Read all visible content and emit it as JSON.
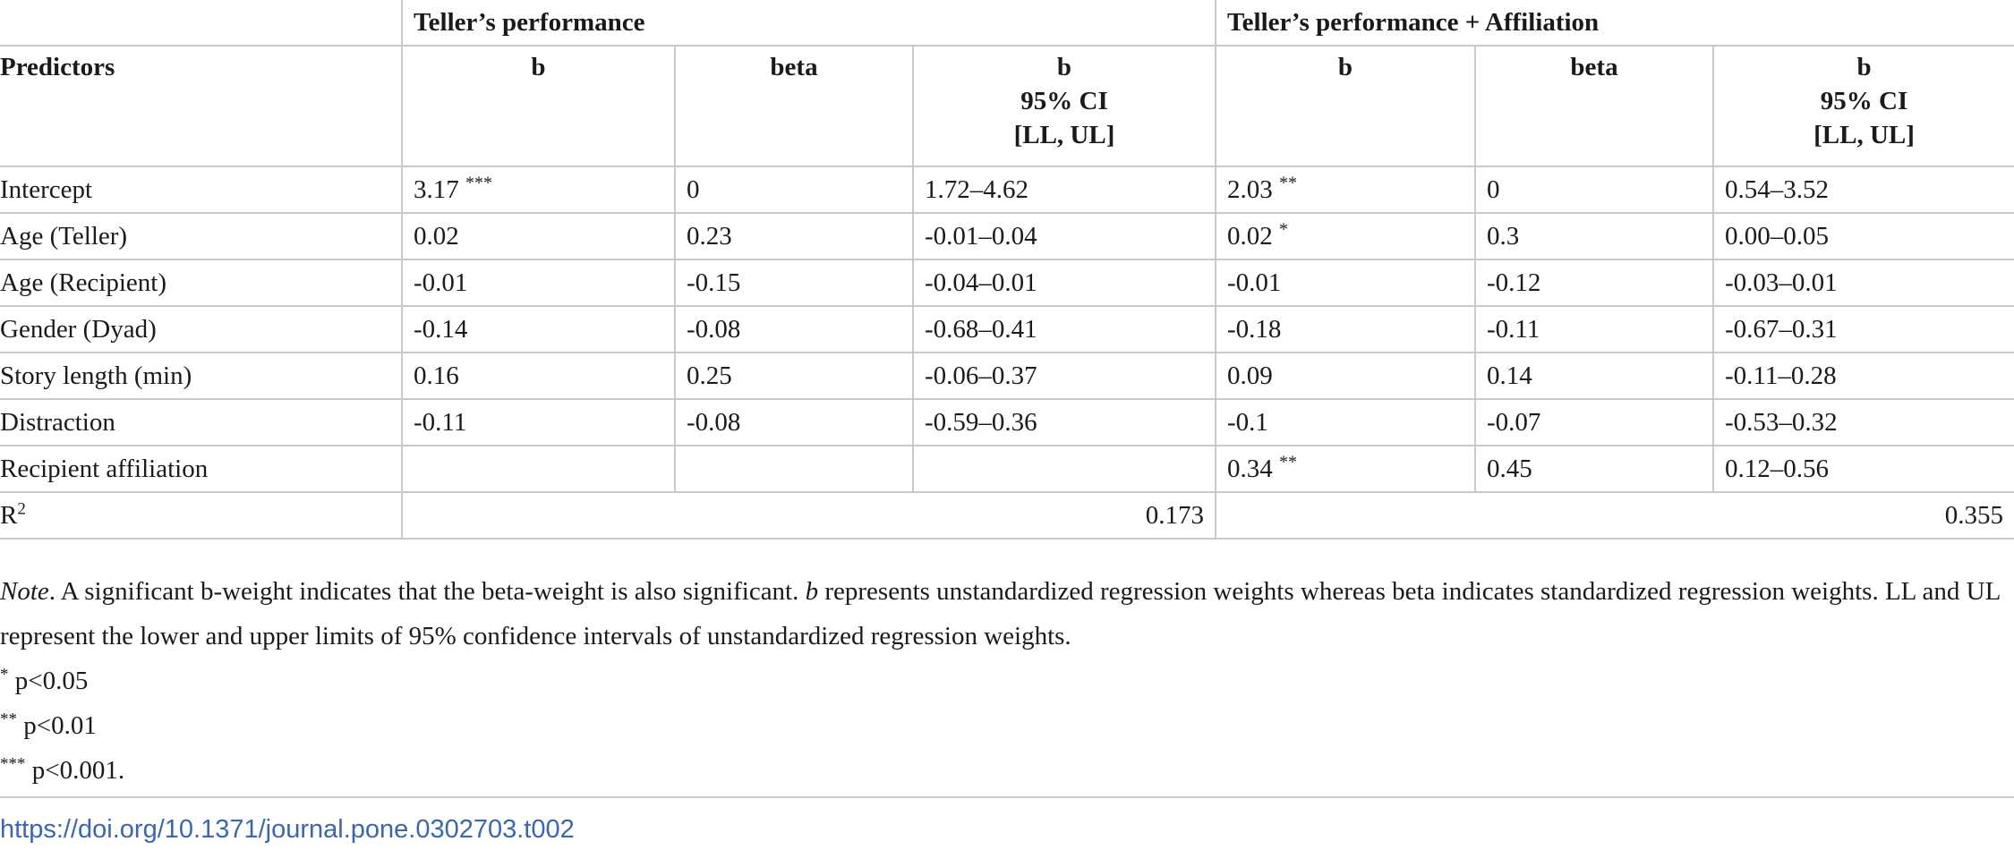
{
  "table": {
    "group_headers": [
      "Teller’s performance",
      "Teller’s performance + Affiliation"
    ],
    "predictors_header": "Predictors",
    "sub_headers": {
      "b": "b",
      "beta": "beta",
      "ci_line1": "b",
      "ci_line2": "95% CI",
      "ci_line3": "[LL, UL]"
    },
    "rows": [
      {
        "predictor": "Intercept",
        "m1_b": "3.17",
        "m1_sig": "***",
        "m1_beta": "0",
        "m1_ci": "1.72–4.62",
        "m2_b": "2.03",
        "m2_sig": "**",
        "m2_beta": "0",
        "m2_ci": "0.54–3.52"
      },
      {
        "predictor": "Age (Teller)",
        "m1_b": "0.02",
        "m1_sig": "",
        "m1_beta": "0.23",
        "m1_ci": "-0.01–0.04",
        "m2_b": "0.02",
        "m2_sig": "*",
        "m2_beta": "0.3",
        "m2_ci": "0.00–0.05"
      },
      {
        "predictor": "Age (Recipient)",
        "m1_b": "-0.01",
        "m1_sig": "",
        "m1_beta": "-0.15",
        "m1_ci": "-0.04–0.01",
        "m2_b": "-0.01",
        "m2_sig": "",
        "m2_beta": "-0.12",
        "m2_ci": "-0.03–0.01"
      },
      {
        "predictor": "Gender (Dyad)",
        "m1_b": "-0.14",
        "m1_sig": "",
        "m1_beta": "-0.08",
        "m1_ci": "-0.68–0.41",
        "m2_b": "-0.18",
        "m2_sig": "",
        "m2_beta": "-0.11",
        "m2_ci": "-0.67–0.31"
      },
      {
        "predictor": "Story length (min)",
        "m1_b": "0.16",
        "m1_sig": "",
        "m1_beta": "0.25",
        "m1_ci": "-0.06–0.37",
        "m2_b": "0.09",
        "m2_sig": "",
        "m2_beta": "0.14",
        "m2_ci": "-0.11–0.28"
      },
      {
        "predictor": "Distraction",
        "m1_b": "-0.11",
        "m1_sig": "",
        "m1_beta": "-0.08",
        "m1_ci": "-0.59–0.36",
        "m2_b": "-0.1",
        "m2_sig": "",
        "m2_beta": "-0.07",
        "m2_ci": "-0.53–0.32"
      },
      {
        "predictor": "Recipient affiliation",
        "m1_b": "",
        "m1_sig": "",
        "m1_beta": "",
        "m1_ci": "",
        "m2_b": "0.34",
        "m2_sig": "**",
        "m2_beta": "0.45",
        "m2_ci": "0.12–0.56"
      }
    ],
    "r2_label": "R",
    "r2_sup": "2",
    "r2_m1": "0.173",
    "r2_m2": "0.355"
  },
  "notes": {
    "note_label": "Note",
    "note_text_1": ". A significant b-weight indicates that the beta-weight is also significant. ",
    "note_b_italic": "b",
    "note_text_2": " represents unstandardized regression weights whereas beta indicates standardized regression weights. LL and UL represent the lower and upper limits of 95% confidence intervals of unstandardized regression weights.",
    "sig": [
      {
        "stars": "*",
        "text": " p<0.05"
      },
      {
        "stars": "**",
        "text": " p<0.01"
      },
      {
        "stars": "***",
        "text": " p<0.001."
      }
    ]
  },
  "doi": "https://doi.org/10.1371/journal.pone.0302703.t002",
  "colors": {
    "border": "#c9c9c9",
    "link": "#3a67b0",
    "text": "#1a1a1a"
  }
}
